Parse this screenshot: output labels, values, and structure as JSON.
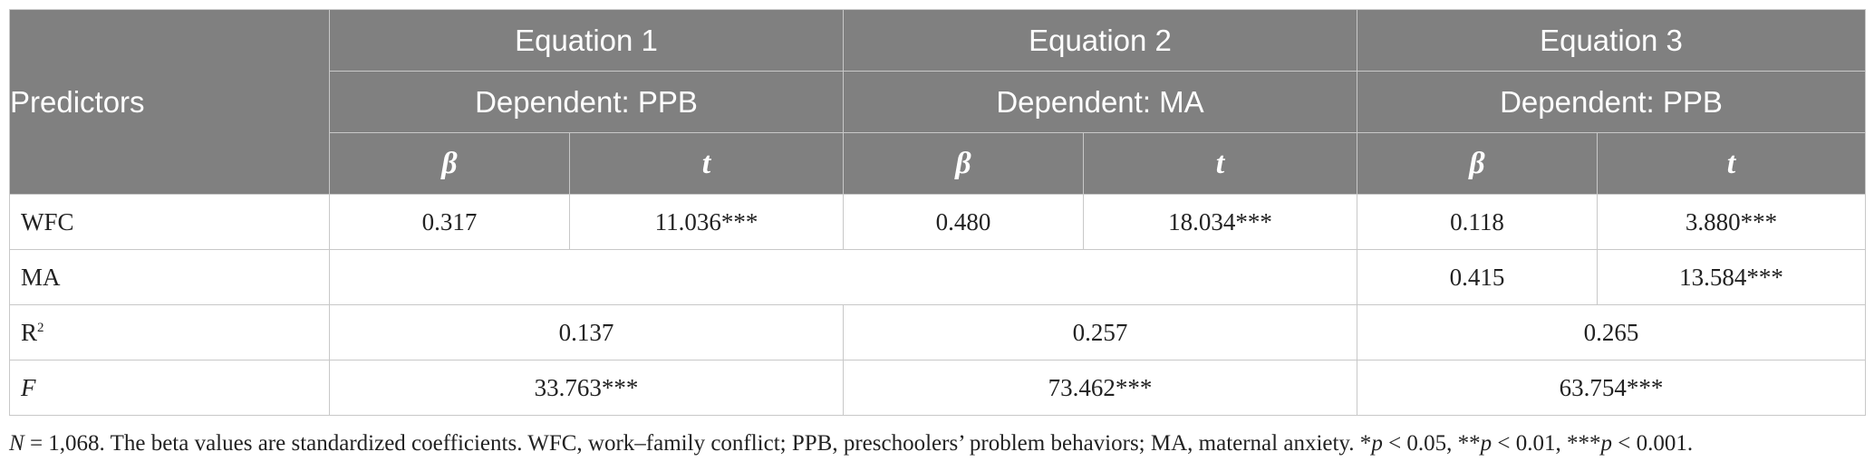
{
  "table": {
    "predictors_header": "Predictors",
    "equations": [
      {
        "title": "Equation 1",
        "dependent": "Dependent: PPB"
      },
      {
        "title": "Equation 2",
        "dependent": "Dependent: MA"
      },
      {
        "title": "Equation 3",
        "dependent": "Dependent: PPB"
      }
    ],
    "beta_symbol": "β",
    "t_symbol": "t",
    "rows": {
      "wfc": {
        "label": "WFC",
        "values": [
          "0.317",
          "11.036***",
          "0.480",
          "18.034***",
          "0.118",
          "3.880***"
        ]
      },
      "ma": {
        "label": "MA",
        "values": [
          "0.415",
          "13.584***"
        ]
      },
      "r2": {
        "label": "R",
        "sup": "2",
        "values": [
          "0.137",
          "0.257",
          "0.265"
        ]
      },
      "f": {
        "label": "F",
        "values": [
          "33.763***",
          "73.462***",
          "63.754***"
        ]
      }
    }
  },
  "note": {
    "n_label": "N",
    "text": " = 1,068. The beta values are standardized coefficients. WFC, work–family conflict; PPB, preschoolers’ problem behaviors; MA, maternal anxiety. *",
    "p1": "p",
    "s1": " < 0.05, **",
    "p2": "p",
    "s2": " < 0.01, ***",
    "p3": "p",
    "s3": " < 0.001."
  }
}
